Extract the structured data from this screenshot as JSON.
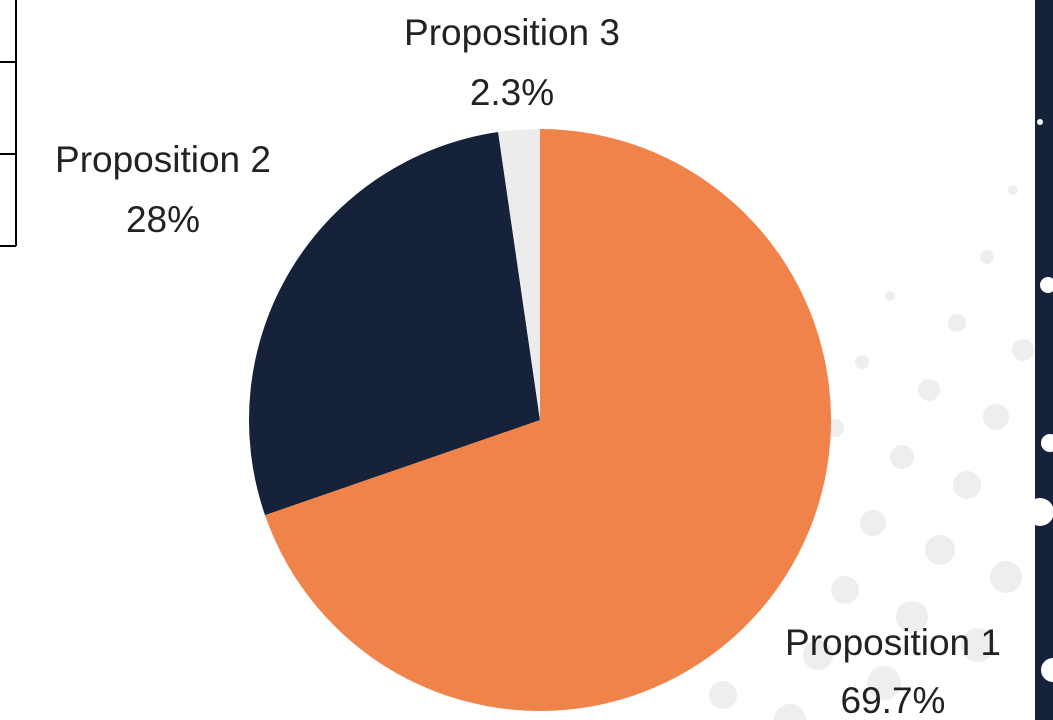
{
  "chart_data": {
    "type": "pie",
    "categories": [
      "Proposition 1",
      "Proposition 2",
      "Proposition 3"
    ],
    "values": [
      69.7,
      28,
      2.3
    ],
    "value_labels": [
      "69.7%",
      "28%",
      "2.3%"
    ],
    "colors": [
      "#f0834a",
      "#16213a",
      "#ececec"
    ]
  }
}
